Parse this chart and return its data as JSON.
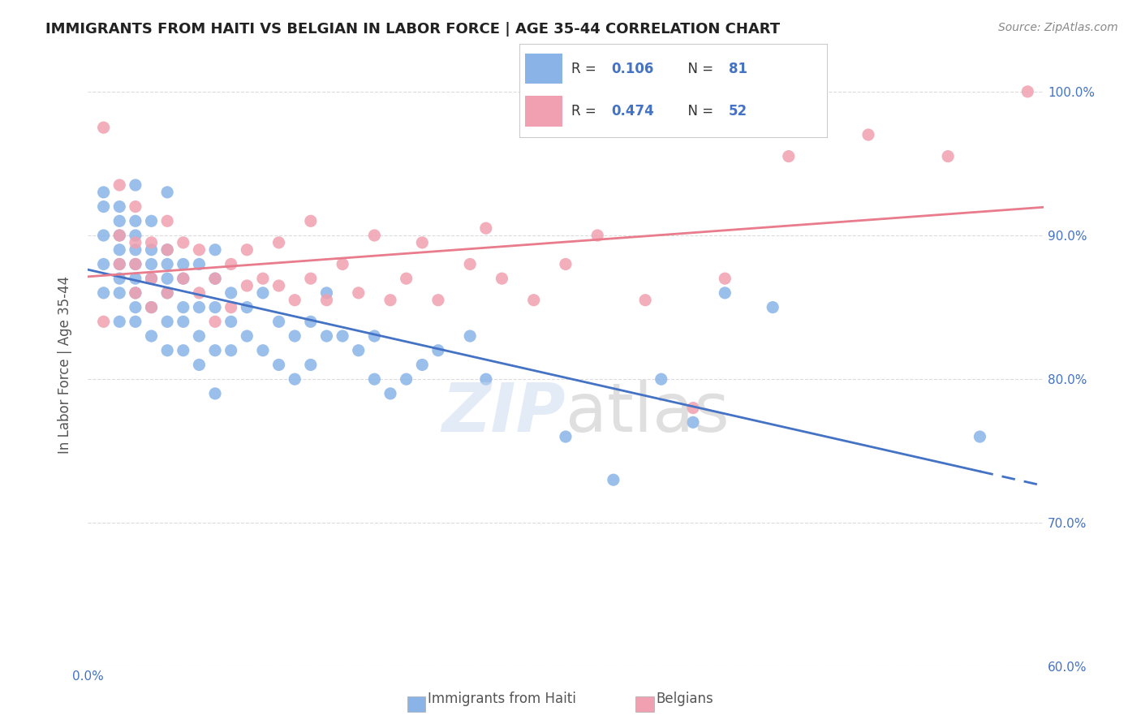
{
  "title": "IMMIGRANTS FROM HAITI VS BELGIAN IN LABOR FORCE | AGE 35-44 CORRELATION CHART",
  "source": "Source: ZipAtlas.com",
  "xlabel": "",
  "ylabel": "In Labor Force | Age 35-44",
  "x_min": 0.0,
  "x_max": 0.6,
  "y_min": 0.6,
  "y_max": 1.02,
  "right_yticks": [
    1.0,
    0.9,
    0.8,
    0.7,
    0.6
  ],
  "right_yticklabels": [
    "100.0%",
    "90.0%",
    "80.0%",
    "70.0%",
    "60.0%"
  ],
  "xticks": [
    0.0,
    0.1,
    0.2,
    0.3,
    0.4,
    0.5,
    0.6
  ],
  "xticklabels": [
    "0.0%",
    "",
    "",
    "",
    "",
    "",
    "60.0%"
  ],
  "haiti_color": "#8ab4e8",
  "belgian_color": "#f0a0b0",
  "haiti_R": 0.106,
  "haiti_N": 81,
  "belgian_R": 0.474,
  "belgian_N": 52,
  "trend_haiti_color": "#4472c4",
  "trend_belgian_color": "#e87b8c",
  "watermark": "ZIPatlas",
  "background_color": "#ffffff",
  "grid_color": "#cccccc",
  "title_color": "#222222",
  "axis_label_color": "#4472c4",
  "haiti_scatter": {
    "x": [
      0.01,
      0.01,
      0.01,
      0.01,
      0.01,
      0.02,
      0.02,
      0.02,
      0.02,
      0.02,
      0.02,
      0.02,
      0.02,
      0.03,
      0.03,
      0.03,
      0.03,
      0.03,
      0.03,
      0.03,
      0.03,
      0.03,
      0.04,
      0.04,
      0.04,
      0.04,
      0.04,
      0.04,
      0.05,
      0.05,
      0.05,
      0.05,
      0.05,
      0.05,
      0.05,
      0.06,
      0.06,
      0.06,
      0.06,
      0.06,
      0.07,
      0.07,
      0.07,
      0.07,
      0.08,
      0.08,
      0.08,
      0.08,
      0.08,
      0.09,
      0.09,
      0.09,
      0.1,
      0.1,
      0.11,
      0.11,
      0.12,
      0.12,
      0.13,
      0.13,
      0.14,
      0.14,
      0.15,
      0.15,
      0.16,
      0.17,
      0.18,
      0.18,
      0.19,
      0.2,
      0.21,
      0.22,
      0.24,
      0.25,
      0.3,
      0.33,
      0.36,
      0.38,
      0.4,
      0.43,
      0.56
    ],
    "y": [
      0.86,
      0.88,
      0.9,
      0.92,
      0.93,
      0.84,
      0.86,
      0.87,
      0.88,
      0.89,
      0.9,
      0.91,
      0.92,
      0.84,
      0.85,
      0.86,
      0.87,
      0.88,
      0.89,
      0.9,
      0.91,
      0.935,
      0.83,
      0.85,
      0.87,
      0.88,
      0.89,
      0.91,
      0.82,
      0.84,
      0.86,
      0.87,
      0.88,
      0.89,
      0.93,
      0.82,
      0.84,
      0.85,
      0.87,
      0.88,
      0.81,
      0.83,
      0.85,
      0.88,
      0.79,
      0.82,
      0.85,
      0.87,
      0.89,
      0.82,
      0.84,
      0.86,
      0.83,
      0.85,
      0.82,
      0.86,
      0.81,
      0.84,
      0.8,
      0.83,
      0.81,
      0.84,
      0.83,
      0.86,
      0.83,
      0.82,
      0.83,
      0.8,
      0.79,
      0.8,
      0.81,
      0.82,
      0.83,
      0.8,
      0.76,
      0.73,
      0.8,
      0.77,
      0.86,
      0.85,
      0.76
    ]
  },
  "belgian_scatter": {
    "x": [
      0.01,
      0.01,
      0.02,
      0.02,
      0.02,
      0.03,
      0.03,
      0.03,
      0.03,
      0.04,
      0.04,
      0.04,
      0.05,
      0.05,
      0.05,
      0.06,
      0.06,
      0.07,
      0.07,
      0.08,
      0.08,
      0.09,
      0.09,
      0.1,
      0.1,
      0.11,
      0.12,
      0.12,
      0.13,
      0.14,
      0.14,
      0.15,
      0.16,
      0.17,
      0.18,
      0.19,
      0.2,
      0.21,
      0.22,
      0.24,
      0.25,
      0.26,
      0.28,
      0.3,
      0.32,
      0.35,
      0.38,
      0.4,
      0.44,
      0.49,
      0.54,
      0.59
    ],
    "y": [
      0.84,
      0.975,
      0.88,
      0.9,
      0.935,
      0.86,
      0.88,
      0.895,
      0.92,
      0.85,
      0.87,
      0.895,
      0.86,
      0.89,
      0.91,
      0.87,
      0.895,
      0.86,
      0.89,
      0.84,
      0.87,
      0.85,
      0.88,
      0.865,
      0.89,
      0.87,
      0.865,
      0.895,
      0.855,
      0.87,
      0.91,
      0.855,
      0.88,
      0.86,
      0.9,
      0.855,
      0.87,
      0.895,
      0.855,
      0.88,
      0.905,
      0.87,
      0.855,
      0.88,
      0.9,
      0.855,
      0.78,
      0.87,
      0.955,
      0.97,
      0.955,
      1.0
    ]
  }
}
